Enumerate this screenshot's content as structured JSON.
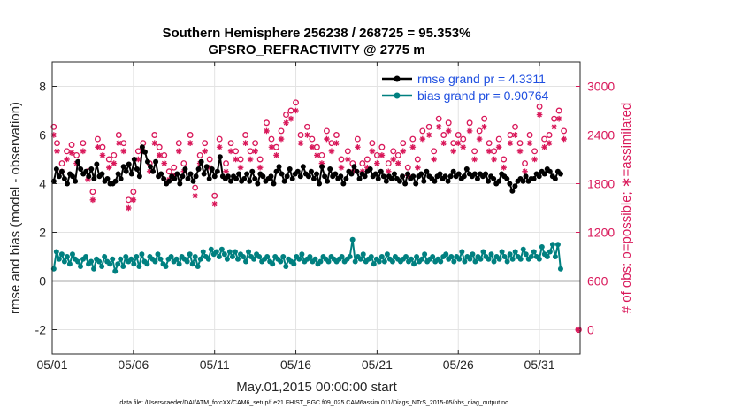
{
  "chart_data": {
    "type": "line",
    "title": "Southern Hemisphere 256238 / 268725 = 95.353%",
    "subtitle": "GPSRO_REFRACTIVITY @ 2775 m",
    "xlabel": "May.01,2015 00:00:00 start",
    "ylabel_left": "rmse and bias (model - observation)",
    "ylabel_right": "# of obs: o=possible; ∗=assimilated",
    "footer": "data file: /Users/raeder/DAI/ATM_forcXX/CAM6_setup/f.e21.FHIST_BGC.f09_025.CAM6assim.011/Diags_NTrS_2015-05/obs_diag_output.nc",
    "x_range": [
      0,
      32.5
    ],
    "x_ticks": [
      {
        "value": 0,
        "label": "05/01"
      },
      {
        "value": 5,
        "label": "05/06"
      },
      {
        "value": 10,
        "label": "05/11"
      },
      {
        "value": 15,
        "label": "05/16"
      },
      {
        "value": 20,
        "label": "05/21"
      },
      {
        "value": 25,
        "label": "05/26"
      },
      {
        "value": 30,
        "label": "05/31"
      }
    ],
    "ylim_left": [
      -3,
      9
    ],
    "y_ticks_left": [
      {
        "value": -2,
        "label": "-2"
      },
      {
        "value": 0,
        "label": "0"
      },
      {
        "value": 2,
        "label": "2"
      },
      {
        "value": 4,
        "label": "4"
      },
      {
        "value": 6,
        "label": "6"
      },
      {
        "value": 8,
        "label": "8"
      }
    ],
    "ylim_right": [
      -300,
      3300
    ],
    "y_ticks_right": [
      {
        "value": 0,
        "label": "0"
      },
      {
        "value": 600,
        "label": "600"
      },
      {
        "value": 1200,
        "label": "1200"
      },
      {
        "value": 1800,
        "label": "1800"
      },
      {
        "value": 2400,
        "label": "2400"
      },
      {
        "value": 3000,
        "label": "3000"
      }
    ],
    "grid": true,
    "legend_position": "top-right",
    "colors": {
      "rmse": "#000000",
      "bias": "#008080",
      "obs": "#d9185a",
      "legend_text": "#1f4fe0",
      "zero_line": "#a6a6a6",
      "grid": "#e3e3e3"
    },
    "series": [
      {
        "name": "rmse grand pr = 4.3311",
        "axis": "left",
        "values": [
          4.1,
          4.6,
          4.3,
          4.5,
          4.2,
          4.0,
          4.4,
          4.3,
          4.1,
          4.9,
          4.6,
          4.4,
          4.5,
          4.3,
          4.6,
          4.2,
          4.8,
          4.3,
          4.4,
          4.1,
          4.2,
          4.0,
          4.0,
          4.1,
          4.4,
          4.2,
          4.7,
          4.5,
          4.8,
          4.4,
          5.0,
          4.6,
          4.3,
          5.5,
          5.3,
          4.9,
          4.7,
          4.5,
          4.9,
          4.3,
          4.4,
          4.2,
          4.0,
          4.1,
          4.3,
          4.2,
          4.4,
          4.0,
          4.3,
          4.6,
          4.2,
          4.4,
          4.1,
          4.3,
          4.6,
          4.9,
          4.4,
          4.7,
          4.2,
          4.6,
          4.3,
          4.5,
          5.1,
          4.3,
          4.2,
          4.3,
          4.1,
          4.3,
          4.2,
          4.4,
          4.1,
          4.2,
          4.4,
          4.1,
          4.5,
          4.2,
          4.0,
          4.4,
          4.3,
          4.1,
          4.2,
          4.3,
          4.0,
          4.5,
          4.7,
          4.4,
          4.1,
          4.3,
          4.6,
          4.2,
          4.4,
          4.5,
          4.3,
          4.7,
          4.4,
          4.3,
          4.5,
          4.2,
          4.4,
          4.0,
          4.7,
          4.3,
          4.1,
          4.6,
          4.3,
          4.4,
          4.2,
          4.3,
          4.0,
          4.2,
          4.5,
          4.4,
          4.7,
          4.5,
          4.2,
          4.4,
          4.3,
          4.5,
          4.6,
          4.3,
          4.4,
          4.2,
          4.5,
          4.3,
          4.1,
          4.3,
          4.2,
          4.4,
          4.2,
          4.1,
          4.3,
          4.0,
          4.4,
          4.2,
          4.3,
          4.0,
          4.3,
          4.4,
          4.1,
          4.5,
          4.3,
          4.2,
          4.1,
          4.3,
          4.4,
          4.2,
          4.3,
          4.1,
          4.3,
          4.5,
          4.3,
          4.4,
          4.2,
          4.3,
          4.6,
          4.4,
          4.3,
          4.4,
          4.2,
          4.4,
          4.3,
          4.4,
          4.1,
          4.3,
          4.2,
          4.0,
          4.1,
          4.4,
          4.3,
          4.2,
          4.0,
          3.7,
          3.9,
          4.1,
          4.2,
          4.1,
          4.3,
          4.1,
          4.2,
          4.2,
          4.4,
          4.3,
          4.5,
          4.4,
          4.6,
          4.5,
          4.3,
          4.2,
          4.5,
          4.4
        ]
      },
      {
        "name": "bias grand pr = 0.90764",
        "axis": "left",
        "values": [
          0.5,
          1.2,
          0.9,
          1.1,
          0.8,
          1.0,
          0.7,
          1.1,
          0.9,
          0.8,
          0.6,
          0.9,
          1.0,
          0.7,
          0.8,
          0.5,
          0.9,
          0.8,
          0.6,
          1.0,
          0.8,
          0.7,
          0.9,
          0.4,
          0.7,
          0.9,
          0.6,
          1.0,
          0.8,
          0.9,
          0.7,
          1.0,
          0.6,
          1.1,
          0.8,
          0.7,
          1.0,
          0.9,
          0.8,
          1.1,
          0.9,
          0.7,
          0.6,
          0.9,
          1.0,
          0.8,
          0.9,
          0.7,
          1.0,
          0.9,
          0.8,
          1.1,
          0.7,
          1.0,
          0.6,
          0.9,
          1.2,
          1.0,
          0.9,
          1.3,
          1.1,
          1.2,
          1.0,
          1.3,
          1.1,
          0.9,
          1.2,
          1.0,
          1.2,
          0.9,
          1.1,
          1.0,
          0.8,
          1.2,
          1.0,
          0.9,
          1.1,
          1.0,
          0.8,
          0.9,
          1.0,
          0.8,
          0.7,
          1.0,
          0.9,
          0.8,
          1.0,
          0.6,
          0.9,
          0.8,
          0.7,
          1.0,
          0.9,
          1.1,
          0.8,
          0.9,
          1.0,
          0.8,
          0.9,
          0.7,
          0.8,
          1.0,
          0.9,
          0.8,
          1.0,
          0.9,
          0.8,
          0.9,
          1.0,
          0.8,
          0.9,
          1.0,
          1.7,
          0.8,
          1.0,
          0.9,
          1.1,
          0.8,
          0.9,
          1.0,
          0.7,
          0.9,
          0.8,
          1.0,
          0.8,
          1.1,
          0.9,
          0.8,
          1.0,
          0.9,
          0.8,
          0.9,
          1.0,
          0.8,
          0.9,
          0.7,
          1.0,
          0.8,
          0.9,
          1.1,
          0.8,
          0.9,
          1.0,
          0.8,
          0.9,
          0.8,
          1.0,
          1.1,
          0.9,
          1.0,
          0.8,
          1.0,
          0.9,
          1.2,
          0.8,
          1.0,
          0.9,
          1.1,
          0.8,
          1.0,
          0.9,
          1.2,
          1.0,
          0.9,
          1.1,
          0.8,
          1.0,
          0.9,
          1.2,
          1.0,
          0.8,
          1.1,
          0.9,
          1.2,
          1.0,
          0.9,
          1.3,
          1.1,
          0.9,
          1.0,
          1.2,
          1.0,
          0.9,
          1.4,
          1.1,
          1.0,
          1.2,
          1.5,
          1.0,
          1.5,
          0.5
        ]
      },
      {
        "name": "possible",
        "axis": "right",
        "marker": "o",
        "x": [
          0.1,
          0.3,
          0.6,
          0.9,
          1.2,
          1.5,
          1.9,
          2.2,
          2.5,
          2.8,
          3.1,
          3.5,
          3.8,
          4.1,
          4.4,
          4.7,
          5.0,
          5.3,
          5.6,
          6.0,
          6.3,
          6.6,
          6.9,
          7.2,
          7.5,
          7.8,
          8.1,
          8.5,
          8.8,
          9.1,
          9.4,
          9.7,
          10.0,
          10.3,
          10.7,
          11.0,
          11.3,
          11.6,
          11.9,
          12.2,
          12.5,
          12.8,
          13.2,
          13.5,
          13.8,
          14.1,
          14.4,
          14.7,
          15.0,
          15.3,
          15.7,
          16.0,
          16.3,
          16.6,
          16.9,
          17.2,
          17.5,
          17.8,
          18.2,
          18.5,
          18.8,
          19.1,
          19.4,
          19.7,
          20.0,
          20.3,
          20.7,
          21.0,
          21.3,
          21.6,
          21.9,
          22.2,
          22.5,
          22.8,
          23.2,
          23.5,
          23.8,
          24.1,
          24.4,
          24.7,
          25.0,
          25.3,
          25.7,
          26.0,
          26.3,
          26.6,
          26.9,
          27.2,
          27.5,
          27.8,
          28.2,
          28.5,
          28.8,
          29.1,
          29.4,
          29.7,
          30.0,
          30.3,
          30.6,
          30.9,
          31.2,
          31.5
        ],
        "values": [
          2500,
          2300,
          2050,
          2200,
          2280,
          2150,
          2300,
          1950,
          1700,
          2350,
          2250,
          2100,
          2150,
          2400,
          2300,
          1600,
          1700,
          2200,
          2300,
          2050,
          2400,
          2250,
          2150,
          1950,
          2000,
          2300,
          2050,
          2400,
          1750,
          2150,
          2300,
          2100,
          1650,
          2350,
          2050,
          2300,
          2200,
          2100,
          2400,
          2200,
          2300,
          2100,
          2550,
          2350,
          2250,
          2450,
          2650,
          2700,
          2800,
          2400,
          2500,
          2350,
          2250,
          2150,
          2450,
          2300,
          2400,
          2100,
          2200,
          2050,
          2350,
          2050,
          2100,
          2300,
          2150,
          2250,
          2050,
          2200,
          2150,
          2300,
          2000,
          2350,
          2100,
          2450,
          2500,
          2200,
          2600,
          2400,
          2550,
          2300,
          2400,
          2350,
          2550,
          2200,
          2450,
          2600,
          2300,
          2200,
          2350,
          2100,
          2400,
          2500,
          2300,
          2050,
          2400,
          2200,
          2750,
          2350,
          2400,
          2600,
          2700,
          2450
        ]
      },
      {
        "name": "assimilated",
        "axis": "right",
        "marker": "*",
        "x": [
          0.1,
          0.3,
          0.6,
          0.9,
          1.2,
          1.5,
          1.9,
          2.2,
          2.5,
          2.8,
          3.1,
          3.5,
          3.8,
          4.1,
          4.4,
          4.7,
          5.0,
          5.3,
          5.6,
          6.0,
          6.3,
          6.6,
          6.9,
          7.2,
          7.5,
          7.8,
          8.1,
          8.5,
          8.8,
          9.1,
          9.4,
          9.7,
          10.0,
          10.3,
          10.7,
          11.0,
          11.3,
          11.6,
          11.9,
          12.2,
          12.5,
          12.8,
          13.2,
          13.5,
          13.8,
          14.1,
          14.4,
          14.7,
          15.0,
          15.3,
          15.7,
          16.0,
          16.3,
          16.6,
          16.9,
          17.2,
          17.5,
          17.8,
          18.2,
          18.5,
          18.8,
          19.1,
          19.4,
          19.7,
          20.0,
          20.3,
          20.7,
          21.0,
          21.3,
          21.6,
          21.9,
          22.2,
          22.5,
          22.8,
          23.2,
          23.5,
          23.8,
          24.1,
          24.4,
          24.7,
          25.0,
          25.3,
          25.7,
          26.0,
          26.3,
          26.6,
          26.9,
          27.2,
          27.5,
          27.8,
          28.2,
          28.5,
          28.8,
          29.1,
          29.4,
          29.7,
          30.0,
          30.3,
          30.6,
          30.9,
          31.2,
          31.5
        ],
        "values": [
          2400,
          2200,
          1950,
          2100,
          2180,
          2050,
          2200,
          1850,
          1600,
          2250,
          2150,
          2000,
          2050,
          2300,
          2200,
          1500,
          1600,
          2100,
          2200,
          1950,
          2300,
          2150,
          2050,
          1850,
          1900,
          2200,
          1950,
          2300,
          1650,
          2050,
          2200,
          2000,
          1550,
          2250,
          1950,
          2200,
          2100,
          2000,
          2300,
          2100,
          2200,
          2000,
          2450,
          2250,
          2150,
          2350,
          2550,
          2600,
          2700,
          2300,
          2400,
          2250,
          2150,
          2050,
          2350,
          2200,
          2300,
          2000,
          2100,
          1950,
          2250,
          1950,
          2000,
          2200,
          2050,
          2150,
          1950,
          2100,
          2050,
          2200,
          1900,
          2250,
          2000,
          2350,
          2400,
          2100,
          2500,
          2300,
          2450,
          2200,
          2300,
          2250,
          2450,
          2100,
          2350,
          2500,
          2200,
          2100,
          2250,
          2000,
          2300,
          2400,
          2200,
          1950,
          2300,
          2100,
          2650,
          2250,
          2300,
          2500,
          2600,
          2350
        ]
      }
    ],
    "extra_points_right": [
      {
        "x": 32.4,
        "value": 0
      }
    ]
  }
}
